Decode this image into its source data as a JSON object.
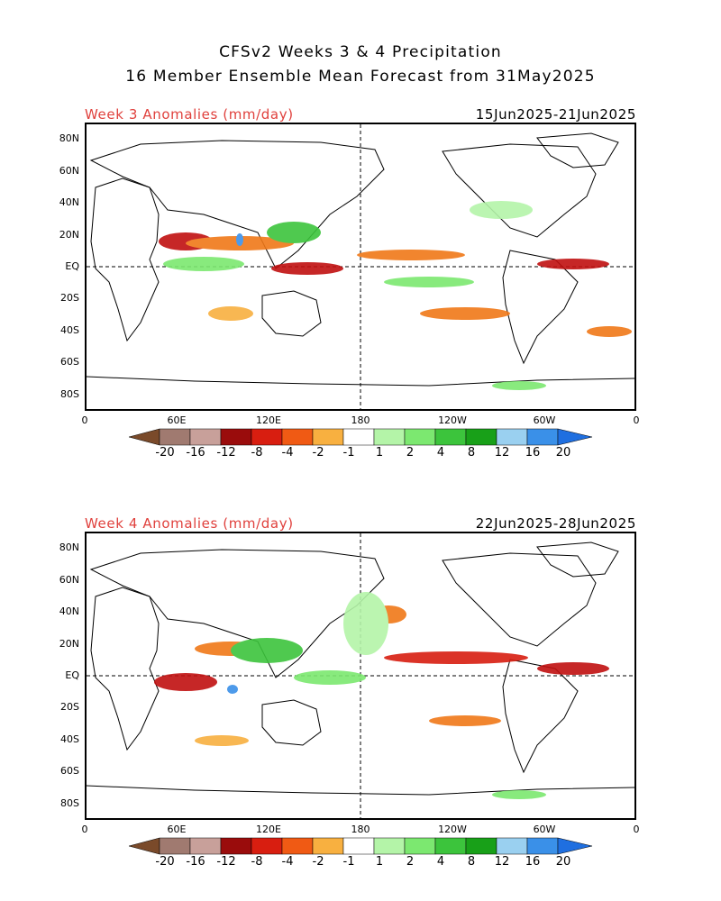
{
  "header": {
    "title_line1": "CFSv2 Weeks 3 & 4 Precipitation",
    "title_line2": "16 Member Ensemble Mean Forecast from 31May2025"
  },
  "panels": [
    {
      "anomaly_title": "Week 3 Anomalies (mm/day)",
      "date_range": "15Jun2025-21Jun2025",
      "lat_labels": [
        "80N",
        "60N",
        "40N",
        "20N",
        "EQ",
        "20S",
        "40S",
        "60S",
        "80S"
      ],
      "lon_labels": [
        "0",
        "60E",
        "120E",
        "180",
        "120W",
        "60W",
        "0"
      ]
    },
    {
      "anomaly_title": "Week 4 Anomalies (mm/day)",
      "date_range": "22Jun2025-28Jun2025",
      "lat_labels": [
        "80N",
        "60N",
        "40N",
        "20N",
        "EQ",
        "20S",
        "40S",
        "60S",
        "80S"
      ],
      "lon_labels": [
        "0",
        "60E",
        "120E",
        "180",
        "120W",
        "60W",
        "0"
      ]
    }
  ],
  "colorbar": {
    "labels": [
      "-20",
      "-16",
      "-12",
      "-8",
      "-4",
      "-2",
      "-1",
      "1",
      "2",
      "4",
      "8",
      "12",
      "16",
      "20"
    ],
    "colors": [
      "#7a4a2a",
      "#a07a70",
      "#c8a09a",
      "#9a0c0c",
      "#d81e10",
      "#f05a14",
      "#f8b040",
      "#ffffff",
      "#b4f4a8",
      "#7ce870",
      "#3cc43c",
      "#18a018",
      "#9ad0f0",
      "#3a90e8",
      "#1f6fe0"
    ]
  },
  "legend_colors": {
    "dry_strong": "#c01010",
    "dry_mid": "#f07818",
    "dry_weak": "#f8b040",
    "wet_weak": "#b4f4a8",
    "wet_mid": "#7ce870",
    "wet_strong": "#3cc43c",
    "very_wet": "#3a90e8"
  }
}
